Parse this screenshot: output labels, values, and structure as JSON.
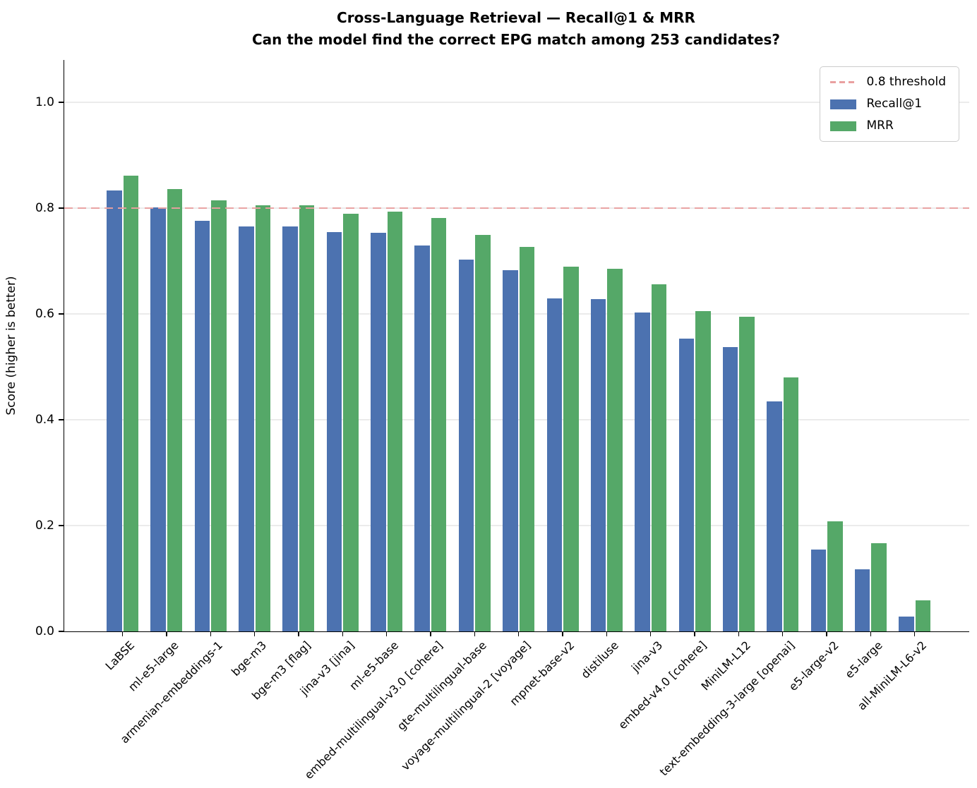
{
  "title": "Cross-Language Retrieval — Recall@1 & MRR",
  "subtitle": "Can the model find the correct EPG match among 253 candidates?",
  "ylabel": "Score (higher is better)",
  "legend": {
    "threshold_label": "0.8 threshold"
  },
  "colors": {
    "recall": "#4C72B0",
    "mrr": "#55A868",
    "threshold": "#E9A0A0",
    "grid": "#EBEBEB",
    "spine": "#000000"
  },
  "chart_data": {
    "type": "bar",
    "title": "Cross-Language Retrieval — Recall@1 & MRR",
    "subtitle": "Can the model find the correct EPG match among 253 candidates?",
    "xlabel": "",
    "ylabel": "Score (higher is better)",
    "ylim": [
      0,
      1.08
    ],
    "grid": true,
    "legend_position": "upper right",
    "threshold": 0.8,
    "threshold_label": "0.8 threshold",
    "y_ticks": [
      "0.0",
      "0.2",
      "0.4",
      "0.6",
      "0.8",
      "1.0"
    ],
    "categories": [
      "LaBSE",
      "ml-e5-large",
      "armenian-embeddings-1",
      "bge-m3",
      "bge-m3 [flag]",
      "jina-v3 [jina]",
      "ml-e5-base",
      "embed-multilingual-v3.0 [cohere]",
      "gte-multilingual-base",
      "voyage-multilingual-2 [voyage]",
      "mpnet-base-v2",
      "distiluse",
      "jina-v3",
      "embed-v4.0 [cohere]",
      "MiniLM-L12",
      "text-embedding-3-large [openai]",
      "e5-large-v2",
      "e5-large",
      "all-MiniLM-L6-v2"
    ],
    "series": [
      {
        "name": "Recall@1",
        "color": "#4C72B0",
        "values": [
          0.833,
          0.802,
          0.776,
          0.765,
          0.765,
          0.755,
          0.753,
          0.73,
          0.703,
          0.683,
          0.63,
          0.628,
          0.603,
          0.554,
          0.538,
          0.435,
          0.155,
          0.118,
          0.028
        ]
      },
      {
        "name": "MRR",
        "color": "#55A868",
        "values": [
          0.862,
          0.836,
          0.815,
          0.806,
          0.806,
          0.79,
          0.793,
          0.781,
          0.75,
          0.727,
          0.689,
          0.686,
          0.656,
          0.605,
          0.595,
          0.48,
          0.208,
          0.167,
          0.059
        ]
      }
    ]
  }
}
